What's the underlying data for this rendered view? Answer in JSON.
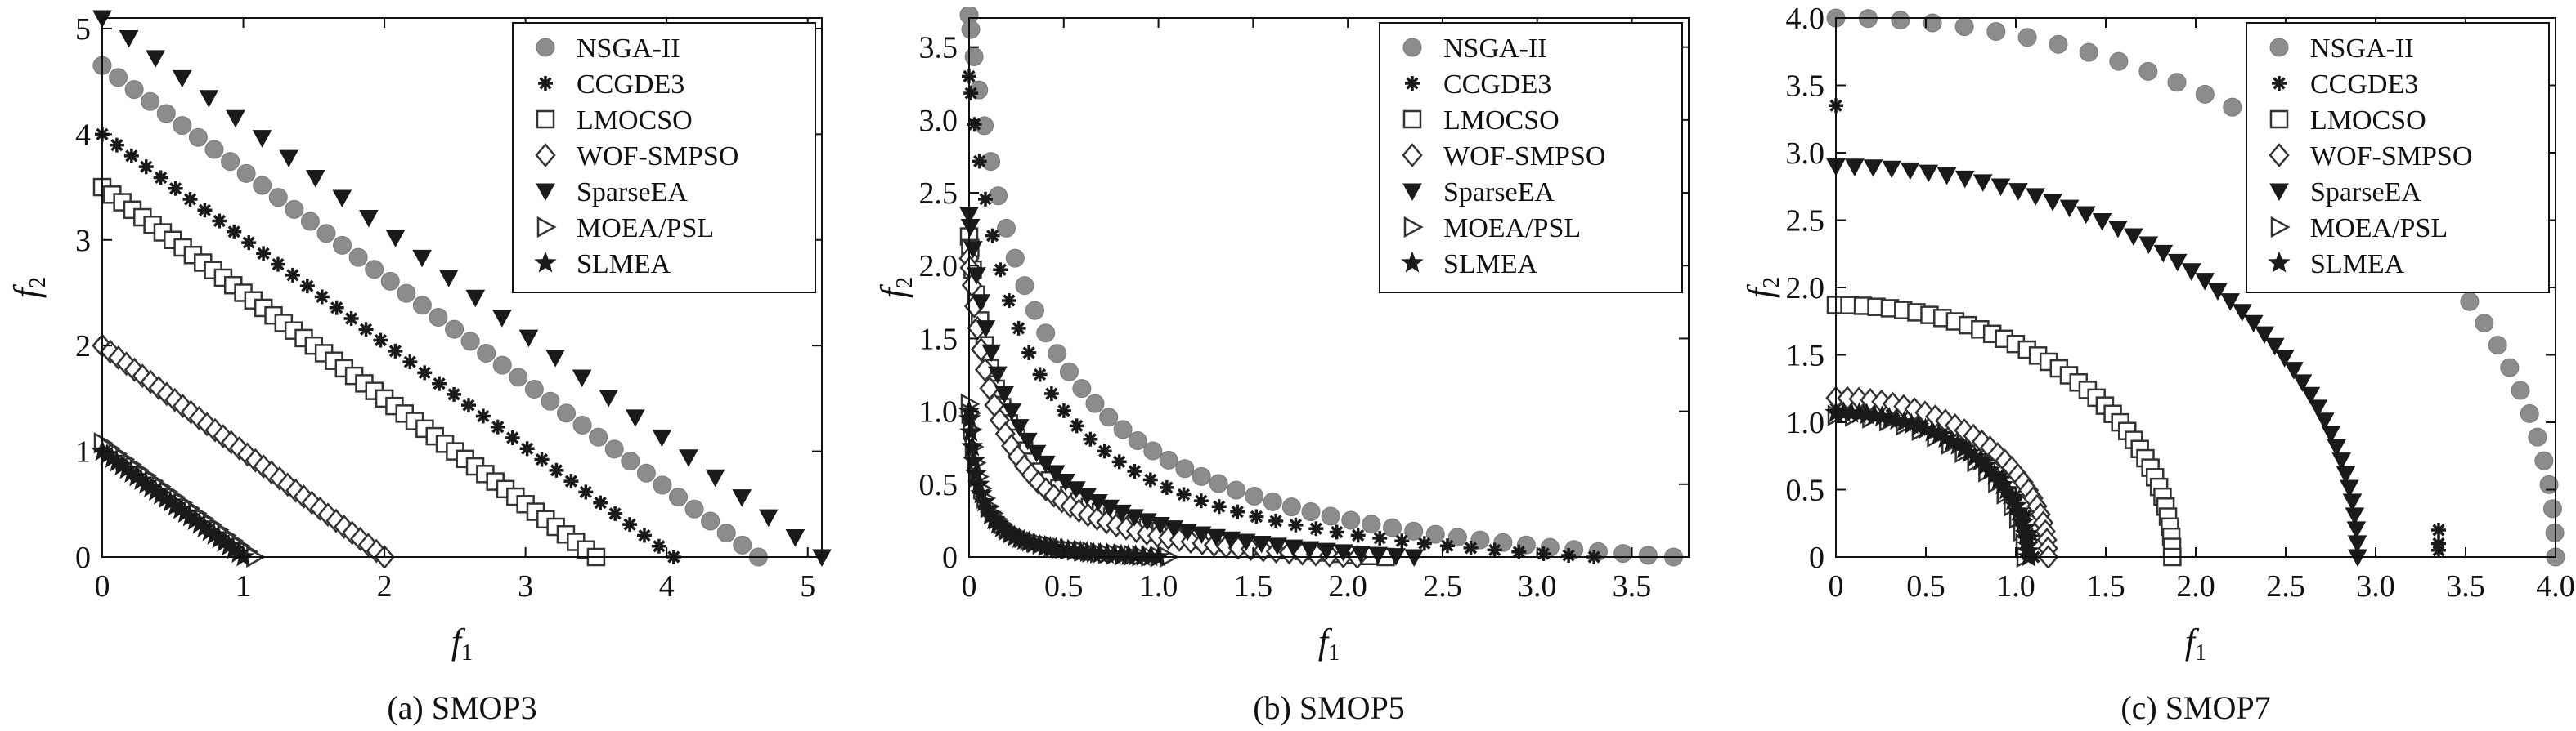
{
  "chart_data": [
    {
      "type": "scatter",
      "caption": "(a) SMOP3",
      "xlabel": "f",
      "xlabel_sub": "1",
      "ylabel": "f",
      "ylabel_sub": "2",
      "xlim": [
        0,
        5.1
      ],
      "ylim": [
        0,
        5.1
      ],
      "xticks": [
        0,
        1,
        2,
        3,
        4,
        5
      ],
      "xtick_labels": [
        "0",
        "1",
        "2",
        "3",
        "4",
        "5"
      ],
      "yticks": [
        0,
        1,
        2,
        3,
        4,
        5
      ],
      "ytick_labels": [
        "0",
        "1",
        "2",
        "3",
        "4",
        "5"
      ],
      "legend_position": "top-right",
      "series": [
        {
          "name": "NSGA-II",
          "marker": "circle",
          "shape": "line",
          "from": [
            0,
            4.65
          ],
          "to": [
            4.65,
            0
          ],
          "count": 42
        },
        {
          "name": "CCGDE3",
          "marker": "asterisk",
          "shape": "line",
          "from": [
            0,
            4.0
          ],
          "to": [
            4.05,
            0
          ],
          "count": 40
        },
        {
          "name": "LMOCSO",
          "marker": "square",
          "shape": "line",
          "from": [
            0,
            3.5
          ],
          "to": [
            3.5,
            0
          ],
          "count": 50
        },
        {
          "name": "WOF-SMPSO",
          "marker": "diamond",
          "shape": "line",
          "from": [
            0,
            2.0
          ],
          "to": [
            2.0,
            0
          ],
          "count": 36
        },
        {
          "name": "SparseEA",
          "marker": "triangle-down",
          "shape": "line",
          "from": [
            0,
            5.1
          ],
          "to": [
            5.1,
            0
          ],
          "count": 28
        },
        {
          "name": "MOEA/PSL",
          "marker": "triangle-right",
          "shape": "line",
          "from": [
            0,
            1.08
          ],
          "to": [
            1.08,
            0
          ],
          "count": 22
        },
        {
          "name": "SLMEA",
          "marker": "star",
          "shape": "line",
          "from": [
            0,
            1.0
          ],
          "to": [
            1.0,
            0
          ],
          "count": 30
        }
      ]
    },
    {
      "type": "scatter",
      "caption": "(b) SMOP5",
      "xlabel": "f",
      "xlabel_sub": "1",
      "ylabel": "f",
      "ylabel_sub": "2",
      "xlim": [
        0,
        3.8
      ],
      "ylim": [
        0,
        3.7
      ],
      "xticks": [
        0,
        0.5,
        1.0,
        1.5,
        2.0,
        2.5,
        3.0,
        3.5
      ],
      "xtick_labels": [
        "0",
        "0.5",
        "1.0",
        "1.5",
        "2.0",
        "2.5",
        "3.0",
        "3.5"
      ],
      "yticks": [
        0,
        0.5,
        1.0,
        1.5,
        2.0,
        2.5,
        3.0,
        3.5
      ],
      "ytick_labels": [
        "0",
        "0.5",
        "1.0",
        "1.5",
        "2.0",
        "2.5",
        "3.0",
        "3.5"
      ],
      "legend_position": "top-right",
      "series": [
        {
          "name": "NSGA-II",
          "marker": "circle",
          "shape": "hyperbola",
          "a": 3.72,
          "k": 0.35,
          "count": 45
        },
        {
          "name": "CCGDE3",
          "marker": "asterisk",
          "shape": "hyperbola",
          "a": 3.3,
          "k": 0.28,
          "count": 40
        },
        {
          "name": "LMOCSO",
          "marker": "square",
          "shape": "hyperbola",
          "a": 2.2,
          "k": 0.18,
          "count": 40
        },
        {
          "name": "WOF-SMPSO",
          "marker": "diamond",
          "shape": "hyperbola",
          "a": 2.05,
          "k": 0.16,
          "count": 45
        },
        {
          "name": "SparseEA",
          "marker": "triangle-down",
          "shape": "hyperbola",
          "a": 2.35,
          "k": 0.2,
          "count": 40
        },
        {
          "name": "MOEA/PSL",
          "marker": "triangle-right",
          "shape": "hyperbola",
          "a": 1.05,
          "k": 0.06,
          "count": 35
        },
        {
          "name": "SLMEA",
          "marker": "star",
          "shape": "hyperbola",
          "a": 1.0,
          "k": 0.055,
          "count": 40
        }
      ]
    },
    {
      "type": "scatter",
      "caption": "(c) SMOP7",
      "xlabel": "f",
      "xlabel_sub": "1",
      "ylabel": "f",
      "ylabel_sub": "2",
      "xlim": [
        0,
        4.0
      ],
      "ylim": [
        0,
        4.0
      ],
      "xticks": [
        0,
        0.5,
        1.0,
        1.5,
        2.0,
        2.5,
        3.0,
        3.5,
        4.0
      ],
      "xtick_labels": [
        "0",
        "0.5",
        "1.0",
        "1.5",
        "2.0",
        "2.5",
        "3.0",
        "3.5",
        "4.0"
      ],
      "yticks": [
        0,
        0.5,
        1.0,
        1.5,
        2.0,
        2.5,
        3.0,
        3.5,
        4.0
      ],
      "ytick_labels": [
        "0",
        "0.5",
        "1.0",
        "1.5",
        "2.0",
        "2.5",
        "3.0",
        "3.5",
        "4.0"
      ],
      "legend_position": "top-right",
      "series": [
        {
          "name": "NSGA-II",
          "marker": "circle",
          "shape": "arc",
          "r": 4.0,
          "count": 36,
          "extra": []
        },
        {
          "name": "CCGDE3",
          "marker": "asterisk",
          "shape": "arc",
          "r": 1.1,
          "count": 12,
          "extra": [
            [
              0,
              3.35
            ],
            [
              3.35,
              0.1
            ],
            [
              3.35,
              0.2
            ],
            [
              3.35,
              0.05
            ]
          ]
        },
        {
          "name": "LMOCSO",
          "marker": "square",
          "shape": "arc",
          "r": 1.87,
          "count": 40,
          "extra": []
        },
        {
          "name": "WOF-SMPSO",
          "marker": "diamond",
          "shape": "arc",
          "r": 1.18,
          "count": 30,
          "extra": []
        },
        {
          "name": "SparseEA",
          "marker": "triangle-down",
          "shape": "arc",
          "r": 2.9,
          "count": 45,
          "extra": []
        },
        {
          "name": "MOEA/PSL",
          "marker": "triangle-right",
          "shape": "arc",
          "r": 1.05,
          "count": 18,
          "extra": []
        },
        {
          "name": "SLMEA",
          "marker": "star",
          "shape": "arc",
          "r": 1.07,
          "count": 40,
          "extra": []
        }
      ]
    }
  ]
}
